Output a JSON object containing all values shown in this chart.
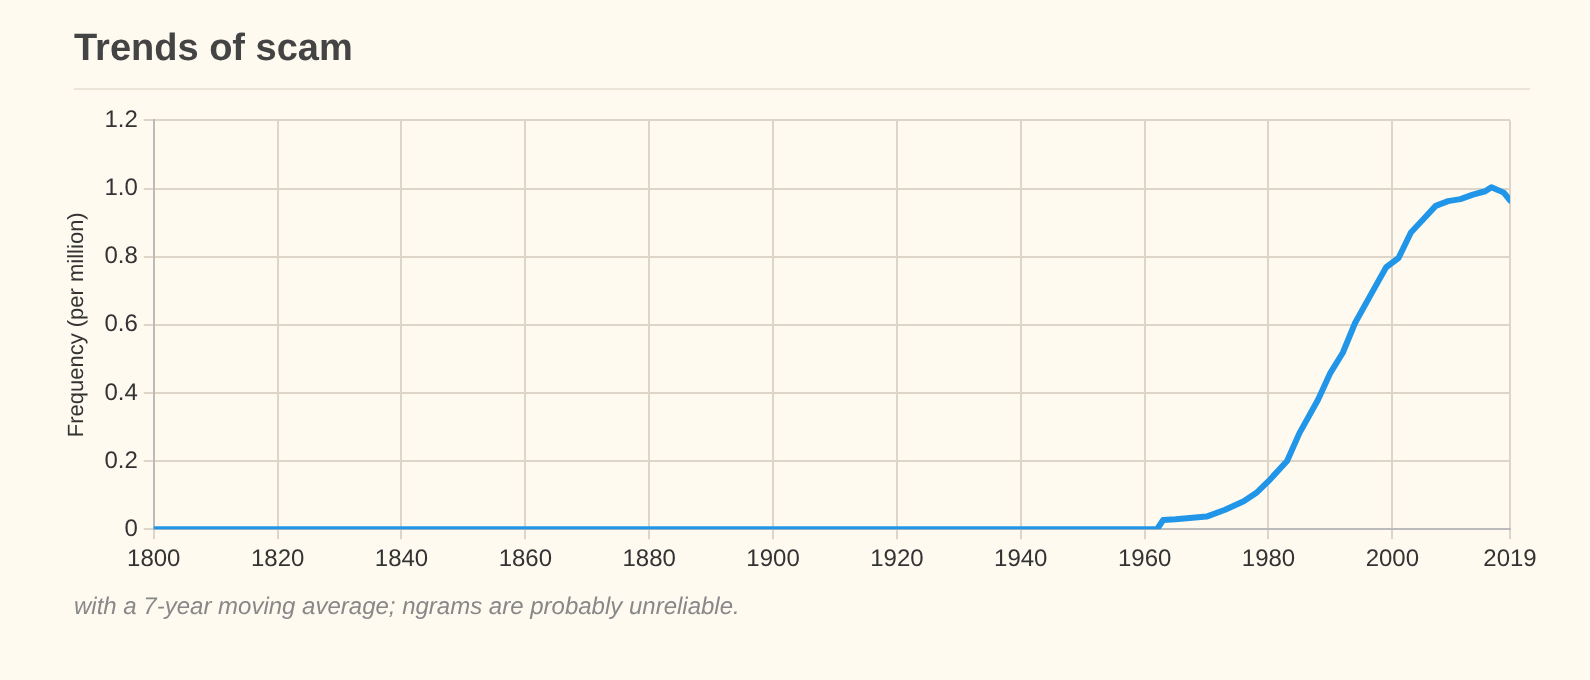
{
  "chart_data": {
    "type": "line",
    "title": "Trends of scam",
    "ylabel": "Frequency (per million)",
    "annotations": [
      "with a 7-year moving average; ngrams are probably unreliable."
    ],
    "series": [
      {
        "color": "#2196e8",
        "x": [
          1800,
          1962,
          1963,
          1965,
          1970,
          1973,
          1976,
          1978,
          1980,
          1983,
          1985,
          1988,
          1990,
          1992,
          1994,
          1997,
          1999,
          2001,
          2003,
          2005,
          2007,
          2009,
          2011,
          2013,
          2015,
          2016,
          2018,
          2019
        ],
        "values": [
          0,
          0,
          0.027,
          0.029,
          0.037,
          0.057,
          0.082,
          0.106,
          0.141,
          0.2,
          0.282,
          0.38,
          0.459,
          0.518,
          0.606,
          0.704,
          0.769,
          0.796,
          0.871,
          0.91,
          0.949,
          0.963,
          0.969,
          0.982,
          0.992,
          1.004,
          0.988,
          0.965
        ]
      }
    ],
    "xlim": [
      1800,
      2019
    ],
    "xticks": [
      1800,
      1820,
      1840,
      1860,
      1880,
      1900,
      1920,
      1940,
      1960,
      1980,
      2000,
      2019
    ],
    "ylim": [
      0,
      1.2
    ],
    "yticks": [
      0,
      0.2,
      0.4,
      0.6,
      0.8,
      {
        "value": 1,
        "label": "1.0"
      },
      1.2
    ],
    "grid": true,
    "marker": "none",
    "line_style": "solid",
    "legend": false
  }
}
